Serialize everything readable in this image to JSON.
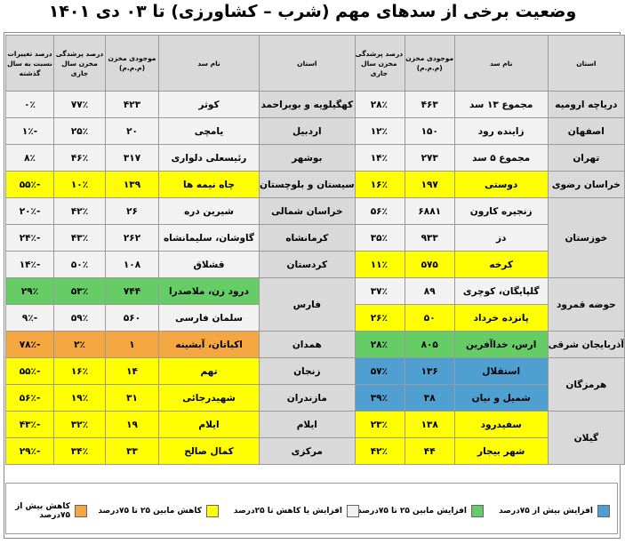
{
  "title": "وضعیت برخی از سدهای مهم (شرب – کشاورزی) تا ۰۳ دی ۱۴۰۱",
  "colors": {
    "yellow": "#ffff00",
    "white": "#f2f2f2",
    "green": "#66cc66",
    "blue": "#4f9fd0",
    "orange": "#f4a640",
    "header": "#d9d9d9"
  },
  "headers": {
    "province": "استان",
    "dam": "نام سد",
    "storage": "موجودی مخزن (م.م.م)",
    "fill": "درصد پرشدگی مخزن سال جاری",
    "change": "درصد تغییرات نسبت به سال گذشته"
  },
  "right_table": [
    {
      "province": "دریاچه ارومیه",
      "dams": [
        {
          "dam": "مجموع ۱۳ سد",
          "storage": "۴۶۳",
          "fill": "۲۸٪",
          "change": "۱۶٪",
          "color": "w"
        }
      ]
    },
    {
      "province": "اصفهان",
      "dams": [
        {
          "dam": "زاینده رود",
          "storage": "۱۵۰",
          "fill": "۱۲٪",
          "change": "-۱۰٪",
          "color": "w"
        }
      ]
    },
    {
      "province": "تهران",
      "dams": [
        {
          "dam": "مجموع ۵ سد",
          "storage": "۲۷۳",
          "fill": "۱۴٪",
          "change": "-۲۳٪",
          "color": "w"
        }
      ]
    },
    {
      "province": "خراسان رضوی",
      "dams": [
        {
          "dam": "دوستی",
          "storage": "۱۹۷",
          "fill": "۱۶٪",
          "change": "-۳۴٪",
          "color": "y"
        }
      ]
    },
    {
      "province": "خوزستان",
      "dams": [
        {
          "dam": "زنجیره کارون",
          "storage": "۶۸۸۱",
          "fill": "۵۶٪",
          "change": "۸٪",
          "color": "w"
        },
        {
          "dam": "دز",
          "storage": "۹۳۳",
          "fill": "۳۵٪",
          "change": "-۶٪",
          "color": "w"
        },
        {
          "dam": "کرخه",
          "storage": "۵۷۵",
          "fill": "۱۱٪",
          "change": "-۵۰٪",
          "color": "y"
        }
      ]
    },
    {
      "province": "حوضه قمرود",
      "dams": [
        {
          "dam": "گلپایگان، کوچری",
          "storage": "۸۹",
          "fill": "۳۷٪",
          "change": "۴٪",
          "color": "w"
        },
        {
          "dam": "پانزده خرداد",
          "storage": "۵۰",
          "fill": "۲۶٪",
          "change": "-۴۰٪",
          "color": "y"
        }
      ]
    },
    {
      "province": "آذربایجان شرقی",
      "dams": [
        {
          "dam": "ارس، خداآفرین",
          "storage": "۸۰۵",
          "fill": "۲۸٪",
          "change": "۳۶٪",
          "color": "g"
        }
      ]
    },
    {
      "province": "هرمزگان",
      "dams": [
        {
          "dam": "استقلال",
          "storage": "۱۳۶",
          "fill": "۵۷٪",
          "change": "۱۴۸٪",
          "color": "b"
        },
        {
          "dam": "شمیل و نیان",
          "storage": "۳۸",
          "fill": "۳۹٪",
          "change": "۱۷۶٪",
          "color": "b"
        }
      ]
    },
    {
      "province": "گیلان",
      "dams": [
        {
          "dam": "سفیدرود",
          "storage": "۱۳۸",
          "fill": "۲۳٪",
          "change": "-۳۷٪",
          "color": "y"
        },
        {
          "dam": "شهر بیجار",
          "storage": "۴۴",
          "fill": "۴۲٪",
          "change": "-۵۵٪",
          "color": "y"
        }
      ]
    }
  ],
  "left_table": [
    {
      "province": "کهگیلویه و بویراحمد",
      "dams": [
        {
          "dam": "کوثر",
          "storage": "۴۲۳",
          "fill": "۷۷٪",
          "change": "۰٪",
          "color": "w"
        }
      ]
    },
    {
      "province": "اردبیل",
      "dams": [
        {
          "dam": "یامچی",
          "storage": "۲۰",
          "fill": "۲۵٪",
          "change": "-۱٪",
          "color": "w"
        }
      ]
    },
    {
      "province": "بوشهر",
      "dams": [
        {
          "dam": "رئیسعلی دلواری",
          "storage": "۳۱۷",
          "fill": "۴۶٪",
          "change": "۸٪",
          "color": "w"
        }
      ]
    },
    {
      "province": "سیستان و بلوچستان",
      "dams": [
        {
          "dam": "چاه نیمه ها",
          "storage": "۱۳۹",
          "fill": "۱۰٪",
          "change": "-۵۵٪",
          "color": "y"
        }
      ]
    },
    {
      "province": "خراسان شمالی",
      "dams": [
        {
          "dam": "شیرین دره",
          "storage": "۲۶",
          "fill": "۴۲٪",
          "change": "-۲۰٪",
          "color": "w"
        }
      ]
    },
    {
      "province": "کرمانشاه",
      "dams": [
        {
          "dam": "گاوشان، سلیمانشاه",
          "storage": "۲۶۲",
          "fill": "۴۳٪",
          "change": "-۲۴٪",
          "color": "w"
        }
      ]
    },
    {
      "province": "کردستان",
      "dams": [
        {
          "dam": "قشلاق",
          "storage": "۱۰۸",
          "fill": "۵۰٪",
          "change": "-۱۴٪",
          "color": "w"
        }
      ]
    },
    {
      "province": "فارس",
      "dams": [
        {
          "dam": "درود زن، ملاصدرا",
          "storage": "۷۴۴",
          "fill": "۵۳٪",
          "change": "۲۹٪",
          "color": "g"
        },
        {
          "dam": "سلمان فارسی",
          "storage": "۵۶۰",
          "fill": "۵۹٪",
          "change": "-۹٪",
          "color": "w"
        }
      ]
    },
    {
      "province": "همدان",
      "dams": [
        {
          "dam": "اکباتان، آبشینه",
          "storage": "۱",
          "fill": "۲٪",
          "change": "-۷۸٪",
          "color": "o"
        }
      ]
    },
    {
      "province": "زنجان",
      "dams": [
        {
          "dam": "تهم",
          "storage": "۱۴",
          "fill": "۱۶٪",
          "change": "-۵۵٪",
          "color": "y"
        }
      ]
    },
    {
      "province": "مازندران",
      "dams": [
        {
          "dam": "شهیدرجائی",
          "storage": "۳۱",
          "fill": "۱۹٪",
          "change": "-۵۶٪",
          "color": "y"
        }
      ]
    },
    {
      "province": "ایلام",
      "dams": [
        {
          "dam": "ایلام",
          "storage": "۱۹",
          "fill": "۳۲٪",
          "change": "-۴۳٪",
          "color": "y"
        }
      ]
    },
    {
      "province": "مرکزی",
      "dams": [
        {
          "dam": "کمال صالح",
          "storage": "۳۳",
          "fill": "۳۴٪",
          "change": "-۲۹٪",
          "color": "y"
        }
      ]
    }
  ],
  "legend": [
    {
      "label": "افزایش بیش از ۷۵درصد",
      "color": "b"
    },
    {
      "label": "افزایش مابین ۲۵ تا ۷۵درصد",
      "color": "g"
    },
    {
      "label": "افزایش یا کاهش تا ۲۵درصد",
      "color": "w"
    },
    {
      "label": "کاهش مابین ۲۵ تا ۷۵درصد",
      "color": "y"
    },
    {
      "label": "کاهش بیش از ۷۵درصد",
      "color": "o"
    }
  ]
}
